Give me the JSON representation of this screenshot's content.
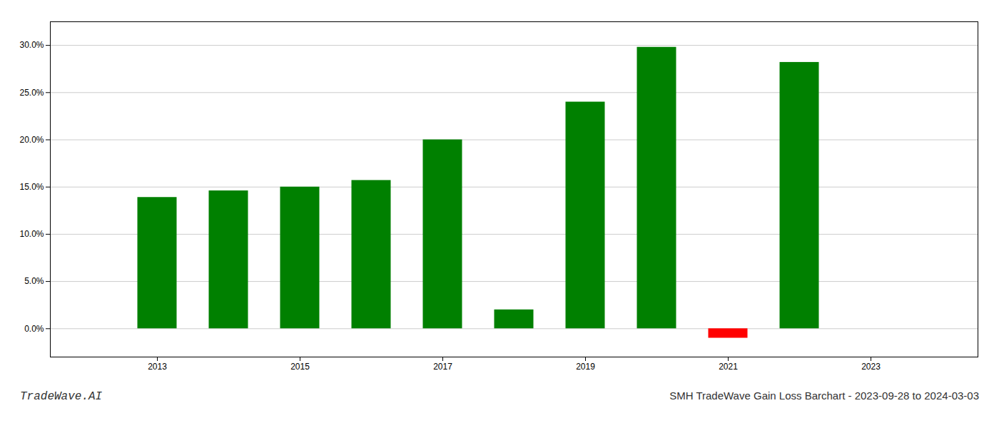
{
  "chart_data": {
    "type": "bar",
    "title": "SMH TradeWave Gain Loss Barchart - 2023-09-28 to 2024-03-03",
    "annotations": [
      "TradeWave.AI"
    ],
    "x": [
      2013,
      2014,
      2015,
      2016,
      2017,
      2018,
      2019,
      2020,
      2021,
      2022
    ],
    "values": [
      0.139,
      0.146,
      0.15,
      0.157,
      0.2,
      0.02,
      0.24,
      0.298,
      -0.01,
      0.282
    ],
    "colors": [
      "#008000",
      "#008000",
      "#008000",
      "#008000",
      "#008000",
      "#008000",
      "#008000",
      "#008000",
      "#ff0000",
      "#008000"
    ],
    "xlim": [
      2011.5,
      2024.5
    ],
    "xticks": [
      2013,
      2015,
      2017,
      2019,
      2021,
      2023
    ],
    "ylim": [
      -0.03,
      0.325
    ],
    "yticks": [
      {
        "value": 0.0,
        "label": "0.0%"
      },
      {
        "value": 0.05,
        "label": "5.0%"
      },
      {
        "value": 0.1,
        "label": "10.0%"
      },
      {
        "value": 0.15,
        "label": "15.0%"
      },
      {
        "value": 0.2,
        "label": "20.0%"
      },
      {
        "value": 0.25,
        "label": "25.0%"
      },
      {
        "value": 0.3,
        "label": "30.0%"
      }
    ],
    "grid": true
  }
}
